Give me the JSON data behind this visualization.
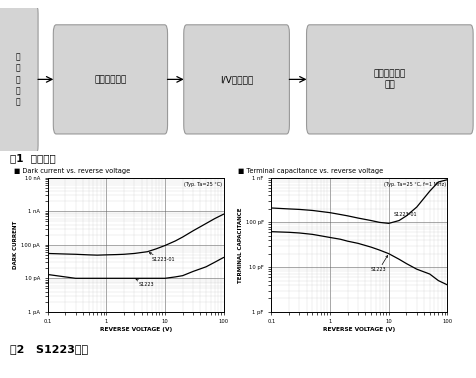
{
  "title1": "图1  系统框图",
  "title2": "图2   S1223特性",
  "block_labels": [
    "传\n感\n器\n偏\n置",
    "带宽补偿模块",
    "I/V转换模块",
    "信号调理输出\n模块"
  ],
  "arrow_color": "#000000",
  "block_fill": "#d4d4d4",
  "block_edge": "#999999",
  "plot1_title": "■ Dark current vs. reverse voltage",
  "plot1_annotation": "(Typ. Ta=25 °C)",
  "plot1_xlabel": "REVERSE VOLTAGE (V)",
  "plot1_ylabel": "DARK CURRENT",
  "plot1_yticks": [
    "1 pA",
    "10 pA",
    "100 pA",
    "1 nA",
    "10 nA"
  ],
  "plot2_title": "■ Terminal capacitance vs. reverse voltage",
  "plot2_annotation": "(Typ. Ta=25 °C, f=1 MHz)",
  "plot2_xlabel": "REVERSE VOLTAGE (V)",
  "plot2_ylabel": "TERMINAL CAPACITANCE",
  "plot2_yticks": [
    "1 pF",
    "10 pF",
    "100 pF",
    "1 nF"
  ],
  "bg_color": "#ffffff",
  "grid_major_color": "#666666",
  "grid_minor_color": "#aaaaaa",
  "curve_color": "#000000",
  "label_S1223": "S1223",
  "label_S1223_01": "S1223-01"
}
